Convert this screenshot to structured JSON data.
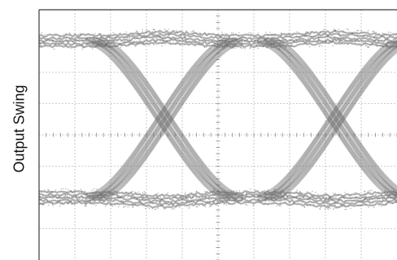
{
  "chart_data": {
    "type": "eye_diagram",
    "title": "",
    "xlabel": "",
    "ylabel": "Output Swing",
    "grid": true,
    "grid_divisions": {
      "x": 10,
      "y": 8
    },
    "center_axis_ticks": true,
    "x": [
      0,
      10
    ],
    "ylim": [
      0,
      8
    ],
    "levels": {
      "high": 7.0,
      "low": 2.0,
      "band_width": 0.35
    },
    "crossings": [
      3.5,
      8.3
    ],
    "unit_interval": 4.8,
    "trace_color": "#6e6e6e",
    "grid_color": "#bdbdbd",
    "frame_color": "#3a3a3a"
  }
}
